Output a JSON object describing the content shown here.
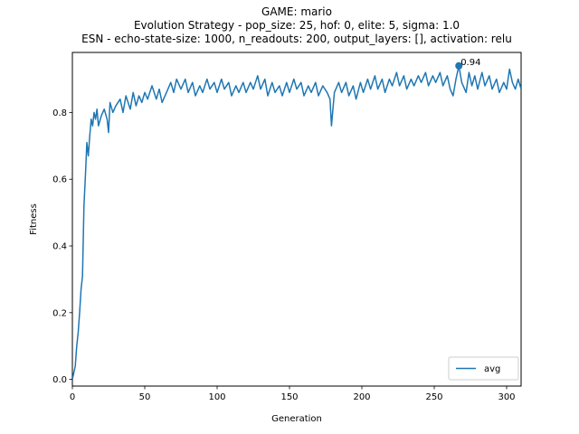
{
  "chart_data": {
    "type": "line",
    "title_lines": [
      "GAME: mario",
      "Evolution Strategy - pop_size: 25, hof: 0, elite: 5, sigma: 1.0",
      "ESN - echo-state-size: 1000, n_readouts: 200, output_layers: [], activation: relu"
    ],
    "xlabel": "Generation",
    "ylabel": "Fitness",
    "xlim": [
      0,
      310
    ],
    "ylim": [
      -0.02,
      0.98
    ],
    "xticks": [
      0,
      50,
      100,
      150,
      200,
      250,
      300
    ],
    "yticks": [
      0.0,
      0.2,
      0.4,
      0.6,
      0.8
    ],
    "ytick_labels": [
      "0.0",
      "0.2",
      "0.4",
      "0.6",
      "0.8"
    ],
    "grid": false,
    "legend_position": "lower-right",
    "series": [
      {
        "name": "avg",
        "color": "#1f77b4",
        "points": [
          [
            0,
            0.0
          ],
          [
            1,
            0.02
          ],
          [
            2,
            0.04
          ],
          [
            3,
            0.1
          ],
          [
            4,
            0.14
          ],
          [
            5,
            0.2
          ],
          [
            6,
            0.27
          ],
          [
            7,
            0.31
          ],
          [
            8,
            0.52
          ],
          [
            9,
            0.61
          ],
          [
            10,
            0.71
          ],
          [
            11,
            0.67
          ],
          [
            12,
            0.73
          ],
          [
            13,
            0.78
          ],
          [
            14,
            0.76
          ],
          [
            15,
            0.8
          ],
          [
            16,
            0.78
          ],
          [
            17,
            0.81
          ],
          [
            18,
            0.76
          ],
          [
            20,
            0.79
          ],
          [
            22,
            0.81
          ],
          [
            24,
            0.78
          ],
          [
            25,
            0.74
          ],
          [
            26,
            0.83
          ],
          [
            28,
            0.8
          ],
          [
            30,
            0.82
          ],
          [
            33,
            0.84
          ],
          [
            35,
            0.8
          ],
          [
            37,
            0.85
          ],
          [
            40,
            0.81
          ],
          [
            42,
            0.86
          ],
          [
            44,
            0.82
          ],
          [
            46,
            0.85
          ],
          [
            48,
            0.83
          ],
          [
            50,
            0.86
          ],
          [
            52,
            0.84
          ],
          [
            55,
            0.88
          ],
          [
            58,
            0.84
          ],
          [
            60,
            0.87
          ],
          [
            62,
            0.83
          ],
          [
            65,
            0.86
          ],
          [
            68,
            0.89
          ],
          [
            70,
            0.86
          ],
          [
            72,
            0.9
          ],
          [
            75,
            0.87
          ],
          [
            78,
            0.9
          ],
          [
            80,
            0.86
          ],
          [
            83,
            0.89
          ],
          [
            85,
            0.85
          ],
          [
            88,
            0.88
          ],
          [
            90,
            0.86
          ],
          [
            93,
            0.9
          ],
          [
            95,
            0.87
          ],
          [
            98,
            0.89
          ],
          [
            100,
            0.86
          ],
          [
            103,
            0.9
          ],
          [
            105,
            0.87
          ],
          [
            108,
            0.89
          ],
          [
            110,
            0.85
          ],
          [
            113,
            0.88
          ],
          [
            115,
            0.86
          ],
          [
            118,
            0.89
          ],
          [
            120,
            0.86
          ],
          [
            123,
            0.89
          ],
          [
            125,
            0.87
          ],
          [
            128,
            0.91
          ],
          [
            130,
            0.87
          ],
          [
            133,
            0.9
          ],
          [
            135,
            0.85
          ],
          [
            138,
            0.89
          ],
          [
            140,
            0.86
          ],
          [
            143,
            0.88
          ],
          [
            145,
            0.85
          ],
          [
            148,
            0.89
          ],
          [
            150,
            0.86
          ],
          [
            153,
            0.9
          ],
          [
            155,
            0.87
          ],
          [
            158,
            0.89
          ],
          [
            160,
            0.85
          ],
          [
            163,
            0.88
          ],
          [
            165,
            0.86
          ],
          [
            168,
            0.89
          ],
          [
            170,
            0.85
          ],
          [
            173,
            0.88
          ],
          [
            176,
            0.86
          ],
          [
            178,
            0.84
          ],
          [
            179,
            0.76
          ],
          [
            181,
            0.86
          ],
          [
            184,
            0.89
          ],
          [
            186,
            0.86
          ],
          [
            189,
            0.89
          ],
          [
            191,
            0.85
          ],
          [
            194,
            0.88
          ],
          [
            196,
            0.84
          ],
          [
            199,
            0.89
          ],
          [
            201,
            0.86
          ],
          [
            204,
            0.9
          ],
          [
            206,
            0.87
          ],
          [
            209,
            0.91
          ],
          [
            211,
            0.87
          ],
          [
            214,
            0.9
          ],
          [
            216,
            0.86
          ],
          [
            219,
            0.9
          ],
          [
            221,
            0.88
          ],
          [
            224,
            0.92
          ],
          [
            226,
            0.88
          ],
          [
            229,
            0.91
          ],
          [
            231,
            0.87
          ],
          [
            234,
            0.9
          ],
          [
            236,
            0.88
          ],
          [
            239,
            0.91
          ],
          [
            241,
            0.89
          ],
          [
            244,
            0.92
          ],
          [
            246,
            0.88
          ],
          [
            249,
            0.91
          ],
          [
            251,
            0.89
          ],
          [
            254,
            0.92
          ],
          [
            256,
            0.88
          ],
          [
            259,
            0.91
          ],
          [
            261,
            0.87
          ],
          [
            263,
            0.85
          ],
          [
            265,
            0.9
          ],
          [
            267,
            0.94
          ],
          [
            269,
            0.89
          ],
          [
            272,
            0.86
          ],
          [
            274,
            0.92
          ],
          [
            276,
            0.88
          ],
          [
            278,
            0.91
          ],
          [
            280,
            0.87
          ],
          [
            283,
            0.92
          ],
          [
            285,
            0.88
          ],
          [
            288,
            0.91
          ],
          [
            290,
            0.87
          ],
          [
            293,
            0.9
          ],
          [
            295,
            0.86
          ],
          [
            298,
            0.89
          ],
          [
            300,
            0.87
          ],
          [
            302,
            0.93
          ],
          [
            304,
            0.89
          ],
          [
            306,
            0.87
          ],
          [
            308,
            0.9
          ],
          [
            310,
            0.87
          ]
        ]
      }
    ],
    "annotations": [
      {
        "x": 267,
        "y": 0.94,
        "text": "0.94"
      }
    ]
  }
}
